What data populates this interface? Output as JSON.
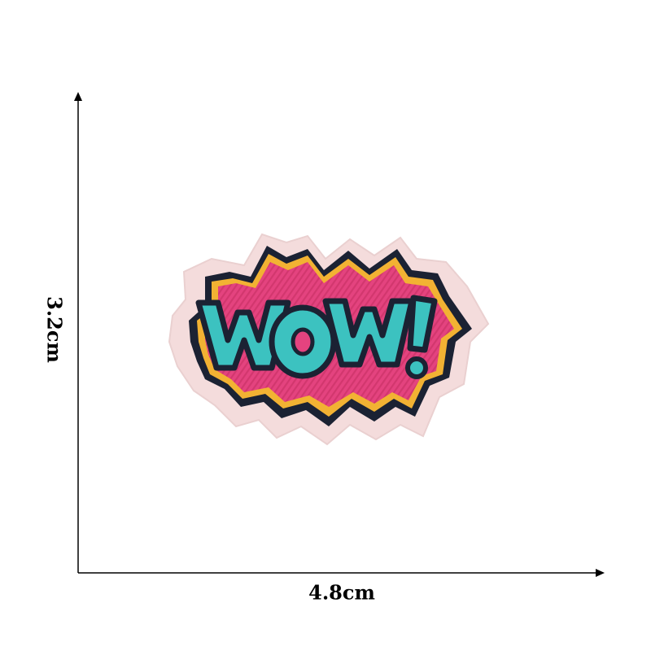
{
  "dimensions": {
    "height_label": "3.2cm",
    "width_label": "4.8cm"
  },
  "patch": {
    "text": "WOW!",
    "colors": {
      "felt_backing": "#f4dcdc",
      "starburst_fill": "#e4437f",
      "starburst_stripe": "#c72f63",
      "outline_dark": "#1b2233",
      "accent_yellow": "#f2b233",
      "letter_teal": "#3cc2c0",
      "letter_teal_dark": "#1f9c9a"
    }
  },
  "axis_color": "#000000"
}
